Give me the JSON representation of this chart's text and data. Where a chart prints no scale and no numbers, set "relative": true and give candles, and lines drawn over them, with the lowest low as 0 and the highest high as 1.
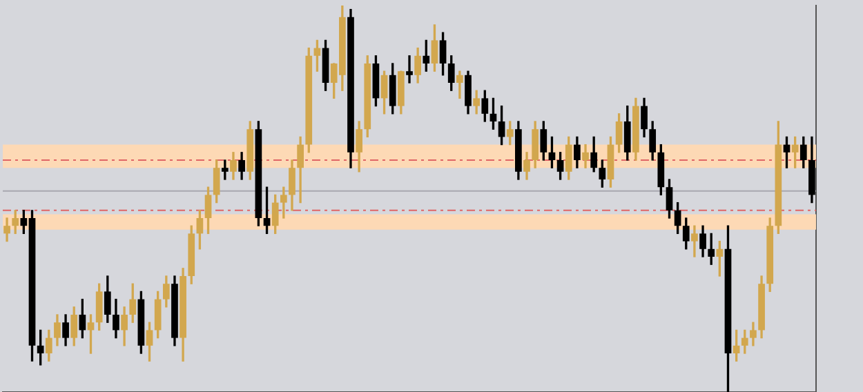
{
  "chart_data": {
    "type": "candlestick",
    "relative": true,
    "tick_labels": false,
    "grid": false,
    "legend": false,
    "categories": [
      null,
      null,
      null,
      null,
      null,
      null,
      null,
      null,
      null,
      null,
      null,
      null,
      null,
      null,
      null,
      null,
      null,
      null,
      null,
      null,
      null,
      null,
      null,
      null,
      null,
      null,
      null,
      null,
      null,
      null,
      null,
      null,
      null,
      null,
      null,
      null,
      null,
      null,
      null,
      null,
      null,
      null,
      null,
      null,
      null,
      null,
      null,
      null,
      null,
      null,
      null,
      null,
      null,
      null,
      null,
      null,
      null,
      null,
      null,
      null,
      null,
      null,
      null,
      null,
      null,
      null,
      null,
      null,
      null,
      null,
      null,
      null,
      null,
      null,
      null,
      null,
      null,
      null,
      null,
      null,
      null,
      null,
      null,
      null,
      null,
      null,
      null,
      null,
      null,
      null,
      null,
      null,
      null,
      null,
      null,
      null,
      null
    ],
    "ohlc": [
      [
        0.41,
        0.45,
        0.39,
        0.43
      ],
      [
        0.43,
        0.47,
        0.41,
        0.45
      ],
      [
        0.45,
        0.47,
        0.41,
        0.43
      ],
      [
        0.45,
        0.47,
        0.08,
        0.12
      ],
      [
        0.12,
        0.16,
        0.07,
        0.1
      ],
      [
        0.1,
        0.16,
        0.08,
        0.14
      ],
      [
        0.14,
        0.2,
        0.12,
        0.18
      ],
      [
        0.18,
        0.2,
        0.12,
        0.14
      ],
      [
        0.14,
        0.22,
        0.12,
        0.2
      ],
      [
        0.2,
        0.24,
        0.14,
        0.16
      ],
      [
        0.16,
        0.2,
        0.1,
        0.18
      ],
      [
        0.18,
        0.28,
        0.16,
        0.26
      ],
      [
        0.26,
        0.3,
        0.18,
        0.2
      ],
      [
        0.2,
        0.24,
        0.14,
        0.16
      ],
      [
        0.16,
        0.22,
        0.12,
        0.2
      ],
      [
        0.2,
        0.28,
        0.18,
        0.24
      ],
      [
        0.24,
        0.26,
        0.1,
        0.12
      ],
      [
        0.12,
        0.18,
        0.08,
        0.16
      ],
      [
        0.16,
        0.26,
        0.14,
        0.24
      ],
      [
        0.24,
        0.3,
        0.22,
        0.28
      ],
      [
        0.28,
        0.3,
        0.12,
        0.14
      ],
      [
        0.14,
        0.32,
        0.08,
        0.3
      ],
      [
        0.3,
        0.43,
        0.28,
        0.41
      ],
      [
        0.41,
        0.47,
        0.37,
        0.45
      ],
      [
        0.45,
        0.53,
        0.41,
        0.51
      ],
      [
        0.51,
        0.6,
        0.49,
        0.58
      ],
      [
        0.58,
        0.6,
        0.55,
        0.57
      ],
      [
        0.57,
        0.62,
        0.55,
        0.6
      ],
      [
        0.6,
        0.62,
        0.55,
        0.57
      ],
      [
        0.57,
        0.7,
        0.55,
        0.68
      ],
      [
        0.68,
        0.7,
        0.43,
        0.45
      ],
      [
        0.45,
        0.53,
        0.41,
        0.43
      ],
      [
        0.43,
        0.51,
        0.41,
        0.49
      ],
      [
        0.49,
        0.53,
        0.45,
        0.51
      ],
      [
        0.51,
        0.6,
        0.47,
        0.58
      ],
      [
        0.58,
        0.66,
        0.49,
        0.64
      ],
      [
        0.64,
        0.89,
        0.62,
        0.87
      ],
      [
        0.87,
        0.91,
        0.83,
        0.89
      ],
      [
        0.89,
        0.91,
        0.78,
        0.8
      ],
      [
        0.8,
        0.85,
        0.76,
        0.85
      ],
      [
        0.82,
        1.0,
        0.78,
        0.97
      ],
      [
        0.97,
        0.99,
        0.58,
        0.62
      ],
      [
        0.62,
        0.7,
        0.57,
        0.68
      ],
      [
        0.68,
        0.87,
        0.66,
        0.85
      ],
      [
        0.85,
        0.87,
        0.74,
        0.76
      ],
      [
        0.76,
        0.83,
        0.72,
        0.82
      ],
      [
        0.82,
        0.85,
        0.72,
        0.74
      ],
      [
        0.74,
        0.83,
        0.72,
        0.83
      ],
      [
        0.83,
        0.87,
        0.8,
        0.82
      ],
      [
        0.82,
        0.89,
        0.8,
        0.87
      ],
      [
        0.87,
        0.91,
        0.83,
        0.85
      ],
      [
        0.85,
        0.95,
        0.83,
        0.91
      ],
      [
        0.91,
        0.93,
        0.82,
        0.85
      ],
      [
        0.85,
        0.87,
        0.78,
        0.8
      ],
      [
        0.8,
        0.83,
        0.76,
        0.82
      ],
      [
        0.82,
        0.83,
        0.72,
        0.74
      ],
      [
        0.74,
        0.78,
        0.72,
        0.76
      ],
      [
        0.76,
        0.78,
        0.7,
        0.72
      ],
      [
        0.72,
        0.76,
        0.68,
        0.7
      ],
      [
        0.7,
        0.74,
        0.64,
        0.66
      ],
      [
        0.66,
        0.7,
        0.64,
        0.68
      ],
      [
        0.68,
        0.7,
        0.55,
        0.57
      ],
      [
        0.57,
        0.62,
        0.55,
        0.6
      ],
      [
        0.6,
        0.7,
        0.58,
        0.68
      ],
      [
        0.68,
        0.7,
        0.6,
        0.62
      ],
      [
        0.62,
        0.66,
        0.58,
        0.6
      ],
      [
        0.6,
        0.62,
        0.55,
        0.57
      ],
      [
        0.57,
        0.66,
        0.55,
        0.64
      ],
      [
        0.64,
        0.66,
        0.58,
        0.6
      ],
      [
        0.6,
        0.64,
        0.58,
        0.62
      ],
      [
        0.62,
        0.66,
        0.57,
        0.58
      ],
      [
        0.58,
        0.6,
        0.53,
        0.55
      ],
      [
        0.55,
        0.66,
        0.53,
        0.64
      ],
      [
        0.64,
        0.72,
        0.62,
        0.7
      ],
      [
        0.7,
        0.74,
        0.6,
        0.62
      ],
      [
        0.62,
        0.76,
        0.6,
        0.74
      ],
      [
        0.74,
        0.76,
        0.66,
        0.68
      ],
      [
        0.68,
        0.7,
        0.6,
        0.62
      ],
      [
        0.62,
        0.64,
        0.51,
        0.53
      ],
      [
        0.53,
        0.55,
        0.45,
        0.47
      ],
      [
        0.47,
        0.49,
        0.41,
        0.43
      ],
      [
        0.43,
        0.45,
        0.37,
        0.39
      ],
      [
        0.39,
        0.43,
        0.35,
        0.41
      ],
      [
        0.41,
        0.43,
        0.35,
        0.37
      ],
      [
        0.37,
        0.41,
        0.33,
        0.35
      ],
      [
        0.35,
        0.39,
        0.3,
        0.37
      ],
      [
        0.37,
        0.43,
        0,
        0.1
      ],
      [
        0.1,
        0.16,
        0.08,
        0.12
      ],
      [
        0.12,
        0.16,
        0.1,
        0.14
      ],
      [
        0.14,
        0.18,
        0.12,
        0.16
      ],
      [
        0.16,
        0.3,
        0.14,
        0.28
      ],
      [
        0.28,
        0.45,
        0.26,
        0.43
      ],
      [
        0.43,
        0.7,
        0.41,
        0.64
      ],
      [
        0.64,
        0.66,
        0.58,
        0.62
      ],
      [
        0.62,
        0.66,
        0.58,
        0.64
      ],
      [
        0.64,
        0.66,
        0.58,
        0.6
      ],
      [
        0.6,
        0.66,
        0.49,
        0.51
      ]
    ],
    "colors": [
      "#d2a74e",
      "#d2a74e",
      "#000000",
      "#000000",
      "#000000",
      "#d2a74e",
      "#d2a74e",
      "#000000",
      "#d2a74e",
      "#000000",
      "#d2a74e",
      "#d2a74e",
      "#000000",
      "#000000",
      "#d2a74e",
      "#d2a74e",
      "#000000",
      "#d2a74e",
      "#d2a74e",
      "#d2a74e",
      "#000000",
      "#d2a74e",
      "#d2a74e",
      "#d2a74e",
      "#d2a74e",
      "#d2a74e",
      "#000000",
      "#d2a74e",
      "#000000",
      "#d2a74e",
      "#000000",
      "#000000",
      "#d2a74e",
      "#d2a74e",
      "#d2a74e",
      "#d2a74e",
      "#d2a74e",
      "#d2a74e",
      "#000000",
      "#d2a74e",
      "#d2a74e",
      "#000000",
      "#d2a74e",
      "#d2a74e",
      "#000000",
      "#d2a74e",
      "#000000",
      "#d2a74e",
      "#000000",
      "#d2a74e",
      "#000000",
      "#d2a74e",
      "#000000",
      "#000000",
      "#d2a74e",
      "#000000",
      "#d2a74e",
      "#000000",
      "#000000",
      "#000000",
      "#d2a74e",
      "#000000",
      "#d2a74e",
      "#d2a74e",
      "#000000",
      "#000000",
      "#000000",
      "#d2a74e",
      "#000000",
      "#d2a74e",
      "#000000",
      "#000000",
      "#d2a74e",
      "#d2a74e",
      "#000000",
      "#d2a74e",
      "#000000",
      "#000000",
      "#000000",
      "#000000",
      "#000000",
      "#000000",
      "#d2a74e",
      "#000000",
      "#000000",
      "#d2a74e",
      "#000000",
      "#d2a74e",
      "#d2a74e",
      "#d2a74e",
      "#d2a74e",
      "#d2a74e",
      "#d2a74e",
      "#000000",
      "#d2a74e",
      "#000000",
      "#000000"
    ],
    "bands": [
      {
        "axis": "y",
        "from": 0.58,
        "to": 0.64,
        "color": "#fdd9b5"
      },
      {
        "axis": "y",
        "from": 0.42,
        "to": 0.46,
        "color": "#fdd9b5"
      }
    ],
    "ref_lines": [
      {
        "axis": "y",
        "value": 0.6,
        "color": "#e06666",
        "line_style": "dashed"
      },
      {
        "axis": "y",
        "value": 0.47,
        "color": "#e06666",
        "line_style": "dashed"
      },
      {
        "axis": "y",
        "value": 0.52,
        "color": "#a8a8b0",
        "line_style": "solid"
      }
    ]
  }
}
